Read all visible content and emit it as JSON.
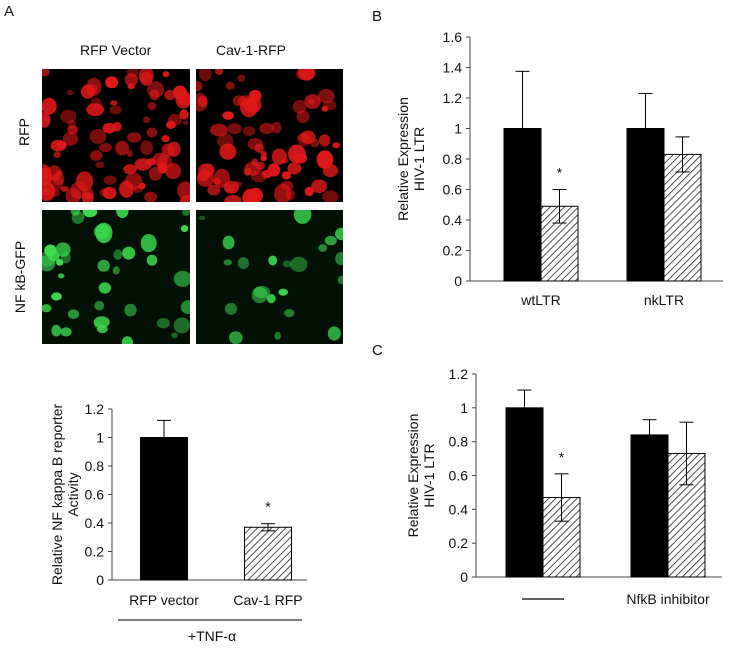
{
  "panels": {
    "a": "A",
    "b": "B",
    "c": "C"
  },
  "micrographs": {
    "columns": [
      "RFP Vector",
      "Cav-1-RFP"
    ],
    "rows": [
      "RFP",
      "NF kB-GFP"
    ],
    "colors": {
      "rfp": "#e01818",
      "gfp": "#3cdc50"
    }
  },
  "chart_data": [
    {
      "id": "A-bottom",
      "type": "bar",
      "categories": [
        "RFP vector",
        "Cav-1 RFP"
      ],
      "values": [
        1.0,
        0.37
      ],
      "errors": [
        0.12,
        0.025
      ],
      "fills": [
        "solid",
        "hatched"
      ],
      "ylabel": "Relative NF kappa B reporter Activity",
      "ylabel_lines": [
        "Relative NF kappa B reporter",
        "Activity"
      ],
      "ylim": [
        0,
        1.2
      ],
      "yticks": [
        "0",
        "0.2",
        "0.4",
        "0.6",
        "0.8",
        "1",
        "1.2"
      ],
      "annotations": [
        {
          "category": 1,
          "text": "*"
        }
      ],
      "condition": "+TNF-α",
      "grid": false
    },
    {
      "id": "B",
      "type": "bar",
      "categories": [
        "wtLTR",
        "nkLTR"
      ],
      "series": [
        {
          "values": [
            1.0,
            1.0
          ],
          "errors": [
            0.375,
            0.23
          ],
          "fill": "solid"
        },
        {
          "values": [
            0.49,
            0.83
          ],
          "errors": [
            0.11,
            0.115
          ],
          "fill": "hatched"
        }
      ],
      "ylabel": "Relative Expression HIV-1 LTR",
      "ylabel_lines": [
        "Relative Expression",
        "HIV-1 LTR"
      ],
      "ylim": [
        0,
        1.6
      ],
      "yticks": [
        "0",
        "0.2",
        "0.4",
        "0.6",
        "0.8",
        "1",
        "1.2",
        "1.4",
        "1.6"
      ],
      "annotations": [
        {
          "category": 0,
          "series": 1,
          "text": "*"
        }
      ],
      "grid": false
    },
    {
      "id": "C",
      "type": "bar",
      "categories": [
        "—",
        "NfkB inhibitor"
      ],
      "series": [
        {
          "values": [
            1.0,
            0.84
          ],
          "errors": [
            0.105,
            0.09
          ],
          "fill": "solid"
        },
        {
          "values": [
            0.47,
            0.73
          ],
          "errors": [
            0.14,
            0.185
          ],
          "fill": "hatched"
        }
      ],
      "ylabel": "Relative Expression HIV-1 LTR",
      "ylabel_lines": [
        "Relative Expression",
        "HIV-1 LTR"
      ],
      "ylim": [
        0,
        1.2
      ],
      "yticks": [
        "0",
        "0.2",
        "0.4",
        "0.6",
        "0.8",
        "1",
        "1.2"
      ],
      "annotations": [
        {
          "category": 0,
          "series": 1,
          "text": "*"
        }
      ],
      "grid": false
    }
  ]
}
